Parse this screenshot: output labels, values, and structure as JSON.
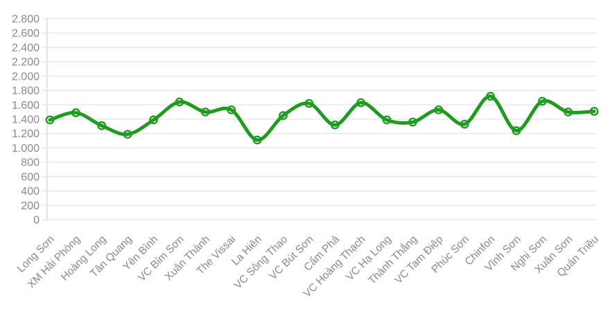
{
  "chart_data": {
    "type": "line",
    "title": "",
    "xlabel": "",
    "ylabel": "",
    "categories": [
      "Long Sơn",
      "XM Hải Phòng",
      "Hoàng Long",
      "Tân Quang",
      "Yên Bình",
      "VC Bỉm Sơn",
      "Xuân Thành",
      "The Vissai",
      "La Hiên",
      "VC Sông Thao",
      "VC Bút Sơn",
      "Cẩm Phả",
      "VC Hoàng Thạch",
      "VC Hạ Long",
      "Thành Thắng",
      "VC Tam Điệp",
      "Phúc Sơn",
      "Chinfon",
      "Vĩnh Sơn",
      "Nghi Sơn",
      "Xuân Sơn",
      "Quán Triều"
    ],
    "values": [
      1390,
      1490,
      1310,
      1190,
      1390,
      1640,
      1500,
      1530,
      1110,
      1450,
      1620,
      1320,
      1630,
      1390,
      1360,
      1530,
      1330,
      1720,
      1240,
      1650,
      1500,
      1510
    ],
    "ylim": [
      0,
      2800
    ],
    "ytick_step": 200,
    "ytick_labels": [
      "0",
      "200",
      "400",
      "600",
      "800",
      "1.000",
      "1.200",
      "1.400",
      "1.600",
      "1.800",
      "2.000",
      "2.200",
      "2.400",
      "2.600",
      "2.800"
    ],
    "grid": true,
    "legend": false,
    "smoothed": true,
    "colors": {
      "line": "#1e9c1e",
      "marker_fill": "#ffffff",
      "grid": "#e4e4e4",
      "axis": "#d9d9d9",
      "label": "#8a8a8a"
    }
  }
}
